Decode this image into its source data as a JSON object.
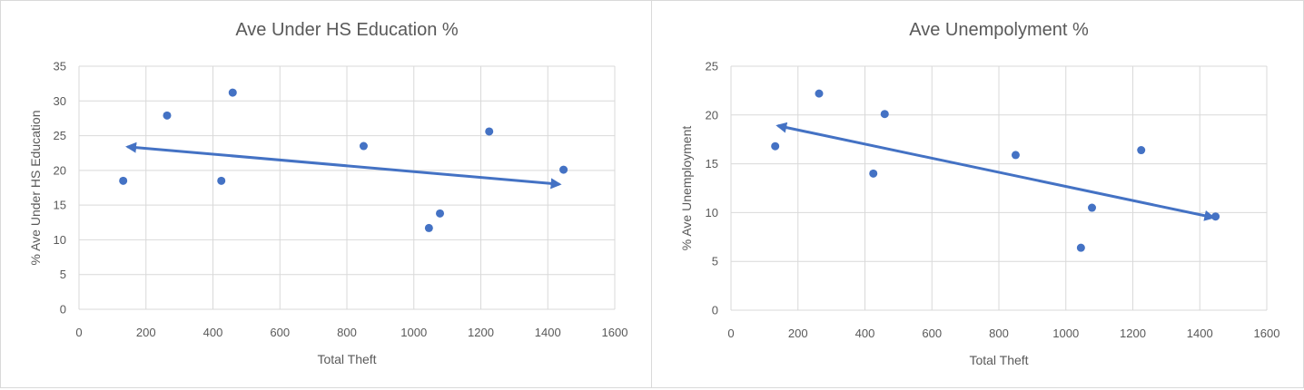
{
  "chart_data": [
    {
      "type": "scatter",
      "title": "Ave Under HS Education %",
      "xlabel": "Total Theft",
      "ylabel": "% Ave Under HS Education",
      "xlim": [
        0,
        1600
      ],
      "ylim": [
        0,
        35
      ],
      "xticks": [
        0,
        200,
        400,
        600,
        800,
        1000,
        1200,
        1400,
        1600
      ],
      "yticks": [
        0,
        5,
        10,
        15,
        20,
        25,
        30,
        35
      ],
      "grid": true,
      "point_color": "#4472c4",
      "points": [
        {
          "x": 132,
          "y": 18.5
        },
        {
          "x": 263,
          "y": 27.9
        },
        {
          "x": 425,
          "y": 18.5
        },
        {
          "x": 459,
          "y": 31.2
        },
        {
          "x": 850,
          "y": 23.5
        },
        {
          "x": 1045,
          "y": 11.7
        },
        {
          "x": 1078,
          "y": 13.8
        },
        {
          "x": 1225,
          "y": 25.6
        },
        {
          "x": 1447,
          "y": 20.1
        }
      ],
      "trendline": {
        "x": [
          145,
          1435
        ],
        "y": [
          23.4,
          18.0
        ],
        "arrows": "both"
      }
    },
    {
      "type": "scatter",
      "title": "Ave Unempolyment %",
      "xlabel": "Total Theft",
      "ylabel": "% Ave Unemployment",
      "xlim": [
        0,
        1600
      ],
      "ylim": [
        0,
        25
      ],
      "xticks": [
        0,
        200,
        400,
        600,
        800,
        1000,
        1200,
        1400,
        1600
      ],
      "yticks": [
        0,
        5,
        10,
        15,
        20,
        25
      ],
      "grid": true,
      "point_color": "#4472c4",
      "points": [
        {
          "x": 132,
          "y": 16.8
        },
        {
          "x": 263,
          "y": 22.2
        },
        {
          "x": 425,
          "y": 14.0
        },
        {
          "x": 459,
          "y": 20.1
        },
        {
          "x": 850,
          "y": 15.9
        },
        {
          "x": 1045,
          "y": 6.4
        },
        {
          "x": 1078,
          "y": 10.5
        },
        {
          "x": 1225,
          "y": 16.4
        },
        {
          "x": 1447,
          "y": 9.6
        }
      ],
      "trendline": {
        "x": [
          140,
          1440
        ],
        "y": [
          18.9,
          9.5
        ],
        "arrows": "both"
      }
    }
  ]
}
